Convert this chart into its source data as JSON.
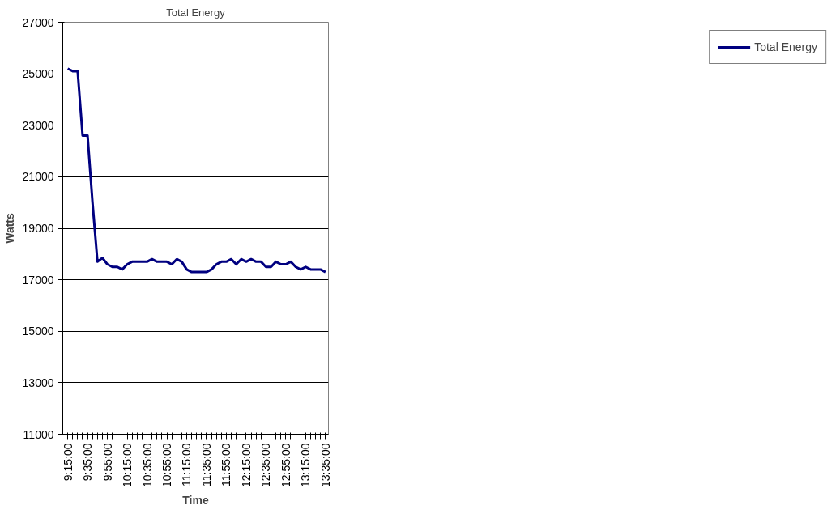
{
  "chart_data": {
    "type": "line",
    "title": "Total Energy",
    "xlabel": "Time",
    "ylabel": "Watts",
    "categories": [
      "9:15:00",
      null,
      null,
      null,
      "9:35:00",
      null,
      null,
      null,
      "9:55:00",
      null,
      null,
      null,
      "10:15:00",
      null,
      null,
      null,
      "10:35:00",
      null,
      null,
      null,
      "10:55:00",
      null,
      null,
      null,
      "11:15:00",
      null,
      null,
      null,
      "11:35:00",
      null,
      null,
      null,
      "11:55:00",
      null,
      null,
      null,
      "12:15:00",
      null,
      null,
      null,
      "12:35:00",
      null,
      null,
      null,
      "12:55:00",
      null,
      null,
      null,
      "13:15:00",
      null,
      null,
      null,
      "13:35:00"
    ],
    "series": [
      {
        "name": "Total Energy",
        "color": "#000080",
        "values": [
          25200,
          25100,
          25100,
          22600,
          22600,
          20000,
          17700,
          17850,
          17600,
          17500,
          17500,
          17400,
          17600,
          17700,
          17700,
          17700,
          17700,
          17800,
          17700,
          17700,
          17700,
          17600,
          17800,
          17700,
          17400,
          17300,
          17300,
          17300,
          17300,
          17400,
          17600,
          17700,
          17700,
          17800,
          17600,
          17800,
          17700,
          17800,
          17700,
          17700,
          17500,
          17500,
          17700,
          17600,
          17600,
          17700,
          17500,
          17400,
          17500,
          17400,
          17400,
          17400,
          17300
        ]
      }
    ],
    "ylim": [
      11000,
      27000
    ],
    "yticks": [
      11000,
      13000,
      15000,
      17000,
      19000,
      21000,
      23000,
      25000,
      27000
    ],
    "grid": "y",
    "legend": "right",
    "marker": "none",
    "line_style": "solid"
  }
}
